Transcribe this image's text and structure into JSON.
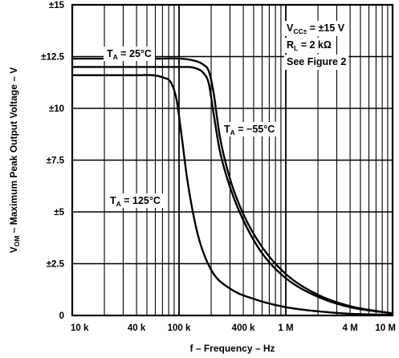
{
  "chart_data": {
    "type": "line",
    "title": "",
    "xlabel": {
      "main": "f – Frequency – Hz"
    },
    "ylabel": {
      "prefix": "V",
      "sub": "OM",
      "suffix": " – Maximum Peak Output Voltage – V"
    },
    "xscale": "log",
    "xlim": [
      10000,
      10000000
    ],
    "ylim": [
      0,
      15
    ],
    "grid": true,
    "x_tick_labels": [
      {
        "value": 10000,
        "label": "10 k"
      },
      {
        "value": 40000,
        "label": "40 k"
      },
      {
        "value": 100000,
        "label": "100 k"
      },
      {
        "value": 400000,
        "label": "400 k"
      },
      {
        "value": 1000000,
        "label": "1 M"
      },
      {
        "value": 4000000,
        "label": "4 M"
      },
      {
        "value": 10000000,
        "label": "10 M"
      }
    ],
    "y_tick_labels": [
      {
        "value": 0,
        "label": "0"
      },
      {
        "value": 2.5,
        "label": "±2.5"
      },
      {
        "value": 5,
        "label": "±5"
      },
      {
        "value": 7.5,
        "label": "±7.5"
      },
      {
        "value": 10,
        "label": "±10"
      },
      {
        "value": 12.5,
        "label": "±12.5"
      },
      {
        "value": 15,
        "label": "±15"
      }
    ],
    "conditions": [
      {
        "prefix": "V",
        "sub": "CC±",
        "suffix": " = ±15 V"
      },
      {
        "prefix": "R",
        "sub": "L",
        "suffix": " = 2 kΩ"
      },
      {
        "prefix": "",
        "sub": "",
        "suffix": "See Figure 2"
      }
    ],
    "series": [
      {
        "name": {
          "prefix": "T",
          "sub": "A",
          "suffix": " = 25°C"
        },
        "x": [
          10000,
          50000,
          120000,
          150000,
          170000,
          190000,
          210000,
          240000,
          300000,
          400000,
          600000,
          1000000,
          2000000,
          4000000,
          10000000
        ],
        "y": [
          12.0,
          12.0,
          12.0,
          11.9,
          11.7,
          11.2,
          9.8,
          8.0,
          6.2,
          4.6,
          3.0,
          1.8,
          0.9,
          0.4,
          0.1
        ]
      },
      {
        "name": {
          "prefix": "T",
          "sub": "A",
          "suffix": " = −55°C"
        },
        "x": [
          10000,
          60000,
          140000,
          170000,
          190000,
          210000,
          240000,
          300000,
          400000,
          600000,
          1000000,
          2000000,
          4000000,
          10000000
        ],
        "y": [
          12.4,
          12.4,
          12.3,
          12.1,
          11.8,
          10.8,
          8.7,
          6.6,
          4.9,
          3.3,
          2.0,
          1.0,
          0.45,
          0.1
        ]
      },
      {
        "name": {
          "prefix": "T",
          "sub": "A",
          "suffix": " = 125°C"
        },
        "x": [
          10000,
          40000,
          70000,
          85000,
          95000,
          105000,
          120000,
          150000,
          200000,
          300000,
          500000,
          1000000,
          2000000,
          4000000,
          10000000
        ],
        "y": [
          11.6,
          11.6,
          11.5,
          11.2,
          10.4,
          8.8,
          6.5,
          3.9,
          2.2,
          1.3,
          0.8,
          0.4,
          0.2,
          0.08,
          0.03
        ]
      }
    ]
  }
}
